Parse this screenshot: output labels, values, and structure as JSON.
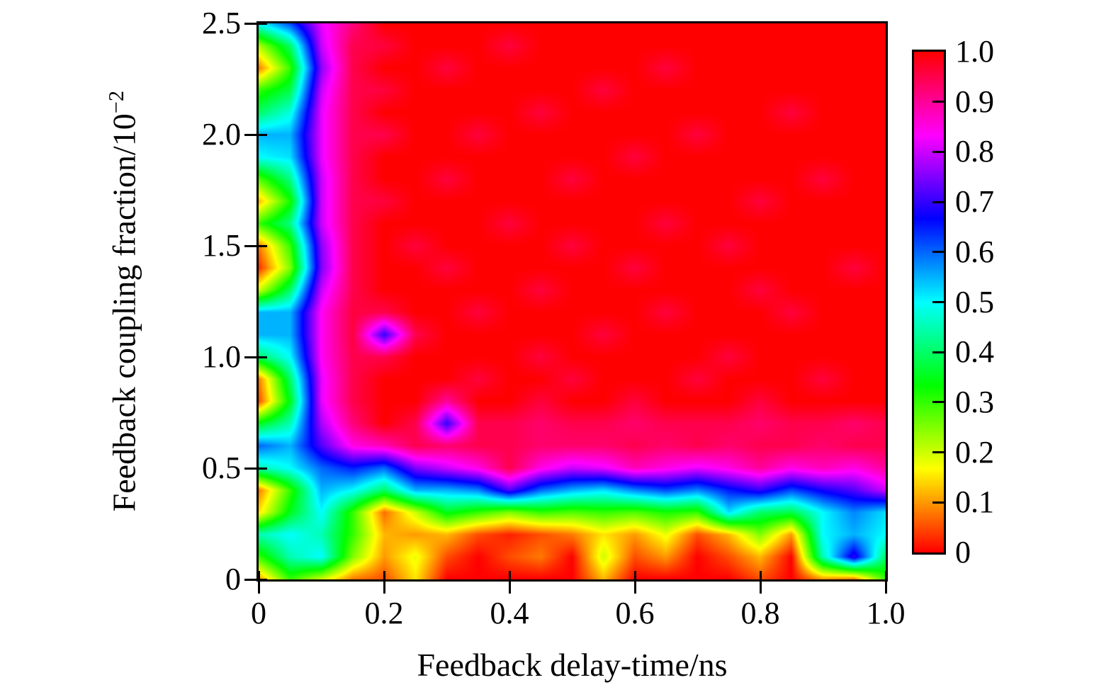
{
  "figure": {
    "background_color": "#ffffff",
    "axis_color": "#000000",
    "text_color": "#000000"
  },
  "axes": {
    "x_label": "Feedback delay-time/ns",
    "y_label_base": "Feedback coupling fraction/10",
    "y_label_exponent": "−2",
    "x_tick_labels": [
      "0",
      "0.2",
      "0.4",
      "0.6",
      "0.8",
      "1.0"
    ],
    "x_tick_values": [
      0,
      0.2,
      0.4,
      0.6,
      0.8,
      1.0
    ],
    "y_tick_labels": [
      "2.5",
      "2.0",
      "1.5",
      "1.0",
      "0.5",
      "0"
    ],
    "y_tick_values": [
      2.5,
      2.0,
      1.5,
      1.0,
      0.5,
      0
    ]
  },
  "colorbar": {
    "labels": [
      "1.0",
      "0.9",
      "0.8",
      "0.7",
      "0.6",
      "0.5",
      "0.4",
      "0.3",
      "0.2",
      "0.1",
      "0"
    ],
    "label_values": [
      1.0,
      0.9,
      0.8,
      0.7,
      0.6,
      0.5,
      0.4,
      0.3,
      0.2,
      0.1,
      0
    ],
    "tick_values": [
      0.9,
      0.8,
      0.7,
      0.6,
      0.5,
      0.4,
      0.3,
      0.2,
      0.1
    ],
    "min": 0,
    "max": 1
  },
  "chart_data": {
    "type": "heatmap",
    "title": "",
    "xlabel": "Feedback delay-time/ns",
    "ylabel": "Feedback coupling fraction/10^-2",
    "x_range": [
      0,
      1.0
    ],
    "y_range": [
      0,
      2.5
    ],
    "z_range": [
      0,
      1.0
    ],
    "colormap": "hsv-cyclic",
    "colormap_stops": [
      {
        "value": 0.0,
        "color": "#ff0000"
      },
      {
        "value": 0.1667,
        "color": "#ffff00"
      },
      {
        "value": 0.3333,
        "color": "#00ff00"
      },
      {
        "value": 0.5,
        "color": "#00ffff"
      },
      {
        "value": 0.6667,
        "color": "#0000ff"
      },
      {
        "value": 0.8333,
        "color": "#ff00ff"
      },
      {
        "value": 1.0,
        "color": "#ff0000"
      }
    ],
    "x": [
      0,
      0.05,
      0.1,
      0.15,
      0.2,
      0.25,
      0.3,
      0.35,
      0.4,
      0.45,
      0.5,
      0.55,
      0.6,
      0.65,
      0.7,
      0.75,
      0.8,
      0.85,
      0.9,
      0.95,
      1.0
    ],
    "y": [
      0,
      0.1,
      0.2,
      0.3,
      0.4,
      0.5,
      0.6,
      0.7,
      0.8,
      0.9,
      1.0,
      1.1,
      1.2,
      1.3,
      1.4,
      1.5,
      1.6,
      1.7,
      1.8,
      1.9,
      2.0,
      2.1,
      2.2,
      2.3,
      2.4,
      2.5
    ],
    "z_rows_order": "bottom-to-top (row 0 is y=0)",
    "z": [
      [
        0.1,
        0.3,
        0.2,
        0.08,
        0.05,
        0.15,
        0.0,
        0.0,
        0.0,
        0.0,
        0.0,
        0.12,
        0.0,
        0.0,
        0.0,
        0.0,
        0.05,
        0.0,
        0.1,
        0.08,
        0.3
      ],
      [
        0.3,
        0.45,
        0.5,
        0.25,
        0.1,
        0.18,
        0.05,
        0.0,
        0.05,
        0.08,
        0.0,
        0.2,
        0.05,
        0.1,
        0.0,
        0.05,
        0.12,
        0.0,
        0.45,
        0.7,
        0.4
      ],
      [
        0.45,
        0.5,
        0.45,
        0.3,
        0.12,
        0.1,
        0.12,
        0.05,
        0.02,
        0.05,
        0.08,
        0.15,
        0.1,
        0.18,
        0.05,
        0.12,
        0.25,
        0.1,
        0.5,
        0.55,
        0.5
      ],
      [
        0.15,
        0.35,
        0.5,
        0.3,
        0.07,
        0.2,
        0.35,
        0.3,
        0.25,
        0.3,
        0.28,
        0.3,
        0.28,
        0.32,
        0.3,
        0.52,
        0.4,
        0.38,
        0.5,
        0.58,
        0.52
      ],
      [
        0.08,
        0.3,
        0.55,
        0.5,
        0.4,
        0.55,
        0.55,
        0.58,
        0.72,
        0.6,
        0.55,
        0.52,
        0.58,
        0.62,
        0.58,
        0.65,
        0.7,
        0.62,
        0.68,
        0.72,
        0.8
      ],
      [
        0.45,
        0.5,
        0.6,
        0.65,
        0.6,
        0.75,
        0.8,
        0.85,
        0.95,
        0.85,
        0.8,
        0.82,
        0.88,
        0.85,
        0.82,
        0.85,
        0.9,
        0.85,
        0.88,
        0.85,
        0.9
      ],
      [
        0.6,
        0.55,
        0.72,
        0.85,
        0.88,
        0.95,
        0.93,
        0.95,
        0.95,
        0.93,
        0.93,
        0.93,
        0.95,
        0.93,
        0.95,
        0.93,
        0.95,
        0.95,
        0.93,
        0.95,
        0.95
      ],
      [
        0.35,
        0.45,
        0.78,
        0.92,
        1.0,
        0.95,
        0.7,
        0.95,
        0.95,
        0.93,
        0.95,
        0.95,
        0.93,
        0.95,
        0.95,
        0.95,
        0.93,
        0.95,
        0.95,
        0.93,
        0.95
      ],
      [
        0.05,
        0.35,
        0.82,
        0.95,
        1.0,
        1.0,
        0.9,
        1.0,
        1.0,
        0.96,
        1.0,
        1.0,
        0.96,
        1.0,
        1.0,
        1.0,
        0.96,
        1.0,
        1.0,
        1.0,
        1.0
      ],
      [
        0.08,
        0.4,
        0.82,
        0.95,
        1.0,
        1.0,
        1.0,
        0.96,
        1.0,
        1.0,
        0.96,
        1.0,
        1.0,
        1.0,
        0.96,
        1.0,
        1.0,
        1.0,
        0.96,
        1.0,
        1.0
      ],
      [
        0.4,
        0.5,
        0.84,
        0.95,
        0.95,
        1.0,
        1.0,
        1.0,
        1.0,
        0.96,
        1.0,
        1.0,
        1.0,
        1.0,
        1.0,
        0.96,
        1.0,
        1.0,
        1.0,
        1.0,
        1.0
      ],
      [
        0.55,
        0.55,
        0.84,
        0.96,
        0.7,
        0.95,
        1.0,
        1.0,
        1.0,
        1.0,
        1.0,
        0.96,
        1.0,
        1.0,
        1.0,
        1.0,
        1.0,
        1.0,
        1.0,
        1.0,
        1.0
      ],
      [
        0.55,
        0.55,
        0.84,
        0.96,
        0.95,
        1.0,
        1.0,
        0.96,
        1.0,
        1.0,
        1.0,
        1.0,
        1.0,
        0.96,
        1.0,
        1.0,
        1.0,
        0.96,
        1.0,
        1.0,
        1.0
      ],
      [
        0.2,
        0.4,
        0.8,
        0.95,
        1.0,
        1.0,
        1.0,
        1.0,
        1.0,
        0.96,
        1.0,
        1.0,
        1.0,
        1.0,
        1.0,
        1.0,
        0.96,
        1.0,
        1.0,
        1.0,
        1.0
      ],
      [
        0.03,
        0.25,
        0.75,
        0.95,
        1.0,
        1.0,
        0.96,
        1.0,
        1.0,
        1.0,
        1.0,
        1.0,
        0.96,
        1.0,
        1.0,
        1.0,
        1.0,
        1.0,
        1.0,
        0.96,
        1.0
      ],
      [
        0.08,
        0.3,
        0.76,
        0.95,
        1.0,
        0.96,
        1.0,
        1.0,
        1.0,
        1.0,
        0.96,
        1.0,
        1.0,
        1.0,
        1.0,
        0.96,
        1.0,
        1.0,
        1.0,
        1.0,
        1.0
      ],
      [
        0.3,
        0.42,
        0.8,
        0.95,
        1.0,
        1.0,
        1.0,
        1.0,
        0.96,
        1.0,
        1.0,
        1.0,
        1.0,
        0.96,
        1.0,
        1.0,
        1.0,
        1.0,
        1.0,
        1.0,
        1.0
      ],
      [
        0.12,
        0.32,
        0.8,
        0.95,
        0.96,
        1.0,
        1.0,
        1.0,
        1.0,
        1.0,
        1.0,
        1.0,
        1.0,
        1.0,
        1.0,
        1.0,
        0.96,
        1.0,
        1.0,
        1.0,
        1.0
      ],
      [
        0.28,
        0.42,
        0.8,
        0.95,
        1.0,
        1.0,
        0.96,
        1.0,
        1.0,
        1.0,
        0.96,
        1.0,
        1.0,
        1.0,
        1.0,
        1.0,
        1.0,
        1.0,
        0.96,
        1.0,
        1.0
      ],
      [
        0.5,
        0.52,
        0.82,
        0.95,
        1.0,
        1.0,
        1.0,
        1.0,
        1.0,
        1.0,
        1.0,
        1.0,
        0.96,
        1.0,
        1.0,
        1.0,
        1.0,
        1.0,
        1.0,
        1.0,
        1.0
      ],
      [
        0.55,
        0.55,
        0.82,
        0.95,
        0.95,
        1.0,
        1.0,
        0.96,
        1.0,
        1.0,
        1.0,
        1.0,
        1.0,
        1.0,
        0.96,
        1.0,
        1.0,
        1.0,
        1.0,
        1.0,
        1.0
      ],
      [
        0.4,
        0.48,
        0.82,
        0.95,
        1.0,
        1.0,
        1.0,
        1.0,
        1.0,
        0.96,
        1.0,
        1.0,
        1.0,
        1.0,
        1.0,
        1.0,
        1.0,
        0.96,
        1.0,
        1.0,
        1.0
      ],
      [
        0.3,
        0.38,
        0.8,
        0.95,
        0.96,
        1.0,
        1.0,
        1.0,
        1.0,
        1.0,
        1.0,
        0.96,
        1.0,
        1.0,
        1.0,
        1.0,
        1.0,
        1.0,
        1.0,
        1.0,
        1.0
      ],
      [
        0.08,
        0.3,
        0.76,
        0.95,
        1.0,
        1.0,
        0.96,
        1.0,
        1.0,
        1.0,
        1.0,
        1.0,
        1.0,
        0.96,
        1.0,
        1.0,
        1.0,
        1.0,
        1.0,
        1.0,
        1.0
      ],
      [
        0.22,
        0.4,
        0.8,
        0.95,
        0.96,
        1.0,
        1.0,
        1.0,
        0.96,
        1.0,
        1.0,
        1.0,
        1.0,
        1.0,
        1.0,
        1.0,
        1.0,
        1.0,
        1.0,
        1.0,
        1.0
      ],
      [
        0.5,
        0.62,
        0.82,
        0.92,
        1.0,
        1.0,
        1.0,
        1.0,
        1.0,
        1.0,
        1.0,
        1.0,
        1.0,
        1.0,
        1.0,
        1.0,
        1.0,
        1.0,
        1.0,
        1.0,
        1.0
      ]
    ]
  }
}
